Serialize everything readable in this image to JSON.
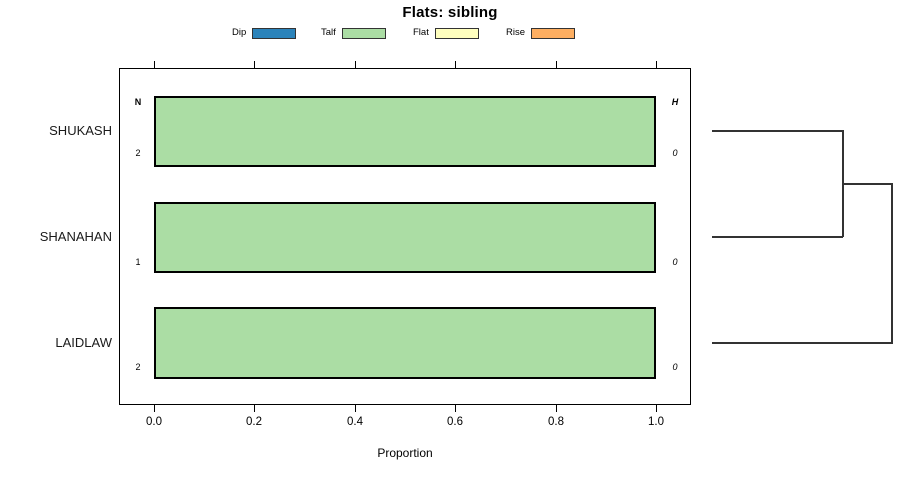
{
  "title": "Flats: sibling",
  "legend": {
    "items": [
      {
        "label": "Dip",
        "color": "#2b83ba"
      },
      {
        "label": "Talf",
        "color": "#abdda4"
      },
      {
        "label": "Flat",
        "color": "#ffffbf"
      },
      {
        "label": "Rise",
        "color": "#fdae61"
      }
    ]
  },
  "axis": {
    "ticks": [
      "0.0",
      "0.2",
      "0.4",
      "0.6",
      "0.8",
      "1.0"
    ],
    "label": "Proportion"
  },
  "columns": {
    "n_header": "N",
    "h_header": "H"
  },
  "rows": [
    {
      "category": "SHUKASH",
      "n": "2",
      "h": "0"
    },
    {
      "category": "SHANAHAN",
      "n": "1",
      "h": "0"
    },
    {
      "category": "LAIDLAW",
      "n": "2",
      "h": "0"
    }
  ],
  "bar_color": "#abdda4",
  "chart_data": {
    "type": "bar",
    "orientation": "horizontal",
    "title": "Flats: sibling",
    "xlabel": "Proportion",
    "xlim": [
      0,
      1
    ],
    "x_ticks": [
      0.0,
      0.2,
      0.4,
      0.6,
      0.8,
      1.0
    ],
    "grid": false,
    "legend_position": "top",
    "categories": [
      "SHUKASH",
      "SHANAHAN",
      "LAIDLAW"
    ],
    "series": [
      {
        "name": "Dip",
        "color": "#2b83ba",
        "values": [
          0,
          0,
          0
        ]
      },
      {
        "name": "Talf",
        "color": "#abdda4",
        "values": [
          1.0,
          1.0,
          1.0
        ]
      },
      {
        "name": "Flat",
        "color": "#ffffbf",
        "values": [
          0,
          0,
          0
        ]
      },
      {
        "name": "Rise",
        "color": "#fdae61",
        "values": [
          0,
          0,
          0
        ]
      }
    ],
    "n_counts": [
      2,
      1,
      2
    ],
    "h_heights": [
      0,
      0,
      0
    ],
    "dendrogram": {
      "side": "right",
      "merges": [
        {
          "members": [
            "SHUKASH",
            "SHANAHAN"
          ],
          "height": 0
        },
        {
          "members": [
            "SHUKASH+SHANAHAN",
            "LAIDLAW"
          ],
          "height": 0
        }
      ]
    }
  }
}
